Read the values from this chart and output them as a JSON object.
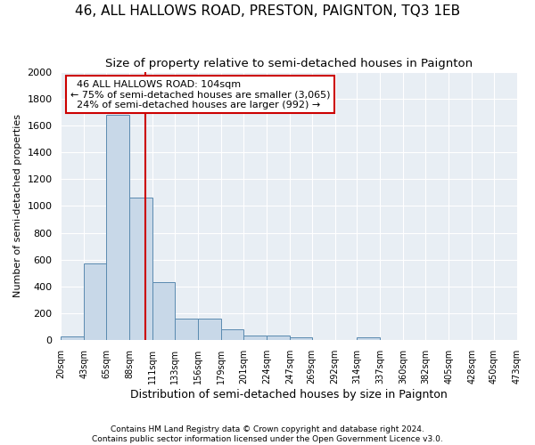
{
  "title": "46, ALL HALLOWS ROAD, PRESTON, PAIGNTON, TQ3 1EB",
  "subtitle": "Size of property relative to semi-detached houses in Paignton",
  "xlabel": "Distribution of semi-detached houses by size in Paignton",
  "ylabel": "Number of semi-detached properties",
  "footer_line1": "Contains HM Land Registry data © Crown copyright and database right 2024.",
  "footer_line2": "Contains public sector information licensed under the Open Government Licence v3.0.",
  "annotation_title": "46 ALL HALLOWS ROAD: 104sqm",
  "annotation_line1": "← 75% of semi-detached houses are smaller (3,065)",
  "annotation_line2": "24% of semi-detached houses are larger (992) →",
  "property_size": 104,
  "bar_color": "#c8d8e8",
  "bar_edge_color": "#5a8ab0",
  "vline_color": "#cc0000",
  "annotation_box_color": "#cc0000",
  "bins": [
    20,
    43,
    65,
    88,
    111,
    133,
    156,
    179,
    201,
    224,
    247,
    269,
    292,
    314,
    337,
    360,
    382,
    405,
    428,
    450,
    473
  ],
  "bin_labels": [
    "20sqm",
    "43sqm",
    "65sqm",
    "88sqm",
    "111sqm",
    "133sqm",
    "156sqm",
    "179sqm",
    "201sqm",
    "224sqm",
    "247sqm",
    "269sqm",
    "292sqm",
    "314sqm",
    "337sqm",
    "360sqm",
    "382sqm",
    "405sqm",
    "428sqm",
    "450sqm",
    "473sqm"
  ],
  "values": [
    30,
    570,
    1680,
    1060,
    430,
    160,
    160,
    80,
    35,
    35,
    20,
    0,
    0,
    20,
    0,
    0,
    0,
    0,
    0,
    0
  ],
  "ylim": [
    0,
    2000
  ],
  "yticks": [
    0,
    200,
    400,
    600,
    800,
    1000,
    1200,
    1400,
    1600,
    1800,
    2000
  ],
  "background_color": "#e8eef4",
  "title_fontsize": 11,
  "subtitle_fontsize": 9.5
}
